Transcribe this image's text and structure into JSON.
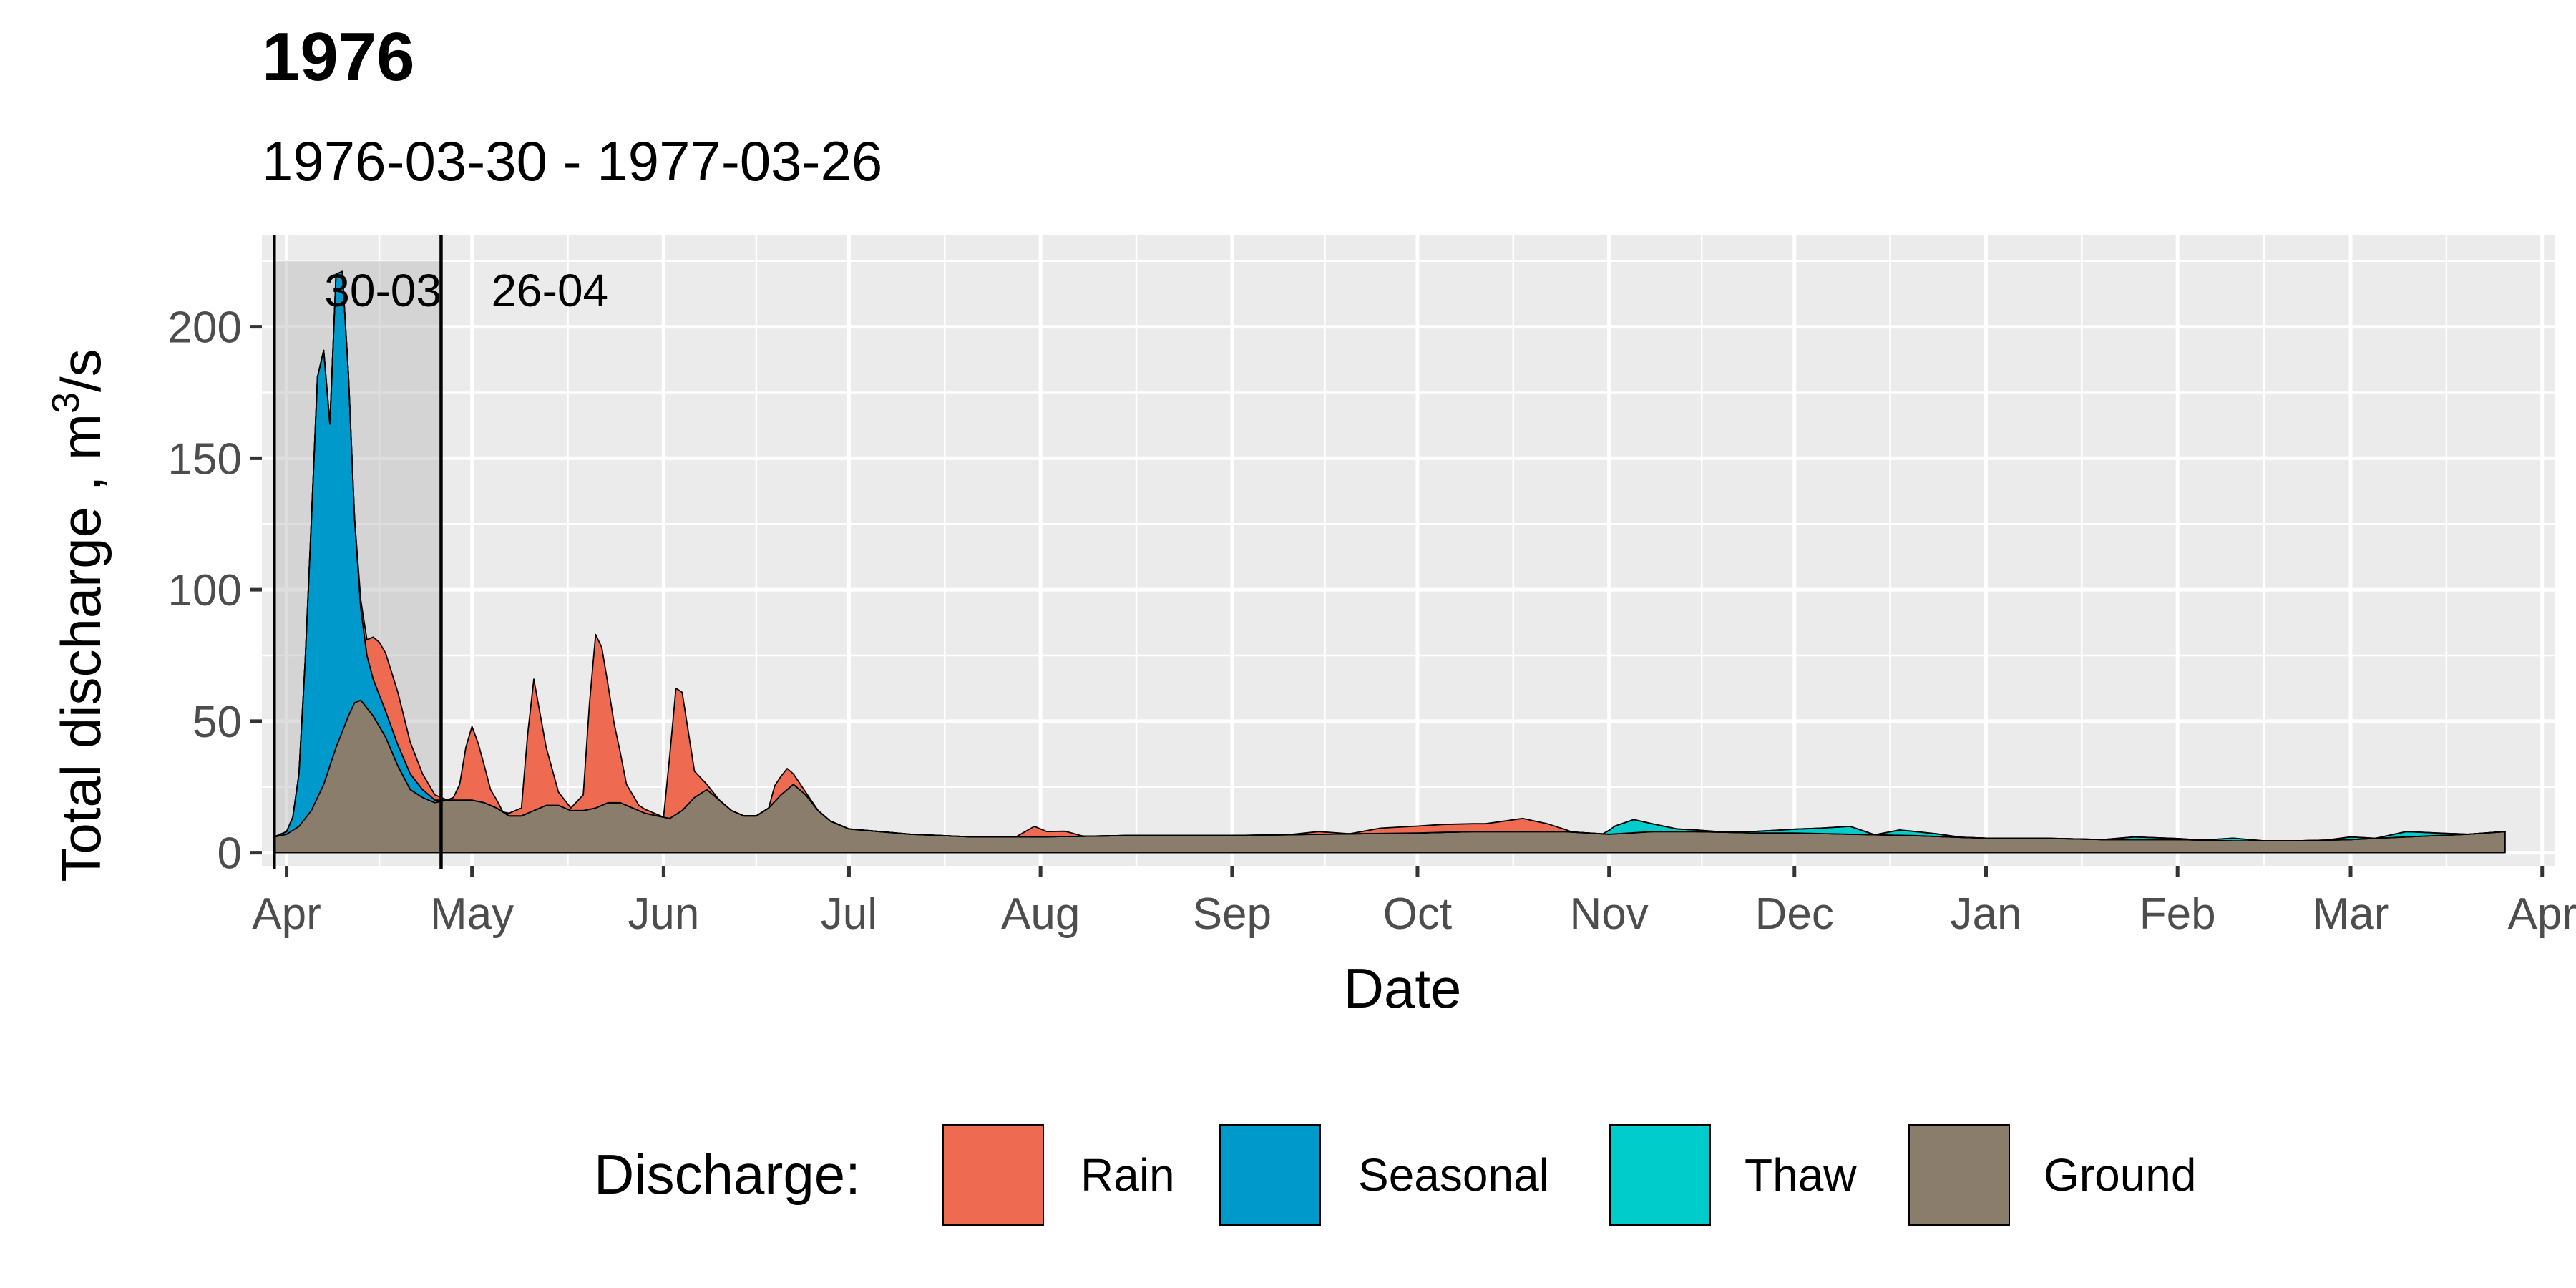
{
  "chart_data": {
    "type": "area",
    "stacked": true,
    "title": "1976",
    "subtitle": "1976-03-30 - 1977-03-26",
    "xlabel": "Date",
    "ylabel_main": "Total discharge ,  m",
    "ylabel_sup": "3",
    "ylabel_tail": "/s",
    "xlim": [
      "1976-03-28",
      "1977-04-03"
    ],
    "ylim": [
      -5,
      235
    ],
    "y_ticks": [
      0,
      50,
      100,
      150,
      200
    ],
    "x_ticks": [
      {
        "date": "1976-04-01",
        "label": "Apr"
      },
      {
        "date": "1976-05-01",
        "label": "May"
      },
      {
        "date": "1976-06-01",
        "label": "Jun"
      },
      {
        "date": "1976-07-01",
        "label": "Jul"
      },
      {
        "date": "1976-08-01",
        "label": "Aug"
      },
      {
        "date": "1976-09-01",
        "label": "Sep"
      },
      {
        "date": "1976-10-01",
        "label": "Oct"
      },
      {
        "date": "1976-11-01",
        "label": "Nov"
      },
      {
        "date": "1976-12-01",
        "label": "Dec"
      },
      {
        "date": "1977-01-01",
        "label": "Jan"
      },
      {
        "date": "1977-02-01",
        "label": "Feb"
      },
      {
        "date": "1977-03-01",
        "label": "Mar"
      },
      {
        "date": "1977-04-01",
        "label": "Apr"
      }
    ],
    "grid": true,
    "legend": {
      "title": "Discharge:",
      "position": "bottom"
    },
    "highlight": {
      "start": "1976-03-30",
      "end": "1976-04-26",
      "ymax": 225,
      "start_label": "30-03",
      "end_label": "26-04"
    },
    "series": [
      {
        "name": "Ground",
        "color": "#8B7D6B",
        "points": [
          [
            "1976-03-30",
            6
          ],
          [
            "1976-04-01",
            7
          ],
          [
            "1976-04-03",
            10
          ],
          [
            "1976-04-05",
            16
          ],
          [
            "1976-04-07",
            26
          ],
          [
            "1976-04-09",
            40
          ],
          [
            "1976-04-11",
            52
          ],
          [
            "1976-04-12",
            57
          ],
          [
            "1976-04-13",
            58
          ],
          [
            "1976-04-15",
            52
          ],
          [
            "1976-04-17",
            44
          ],
          [
            "1976-04-19",
            33
          ],
          [
            "1976-04-21",
            24
          ],
          [
            "1976-04-23",
            21
          ],
          [
            "1976-04-25",
            19
          ],
          [
            "1976-04-27",
            20
          ],
          [
            "1976-04-29",
            20
          ],
          [
            "1976-05-01",
            20
          ],
          [
            "1976-05-03",
            19
          ],
          [
            "1976-05-05",
            17
          ],
          [
            "1976-05-07",
            14
          ],
          [
            "1976-05-09",
            14
          ],
          [
            "1976-05-11",
            16
          ],
          [
            "1976-05-13",
            18
          ],
          [
            "1976-05-15",
            18
          ],
          [
            "1976-05-17",
            16
          ],
          [
            "1976-05-19",
            16
          ],
          [
            "1976-05-21",
            17
          ],
          [
            "1976-05-23",
            19
          ],
          [
            "1976-05-25",
            19
          ],
          [
            "1976-05-27",
            17
          ],
          [
            "1976-05-29",
            15
          ],
          [
            "1976-05-31",
            14
          ],
          [
            "1976-06-02",
            13
          ],
          [
            "1976-06-04",
            16
          ],
          [
            "1976-06-06",
            21
          ],
          [
            "1976-06-08",
            24
          ],
          [
            "1976-06-10",
            20
          ],
          [
            "1976-06-12",
            16
          ],
          [
            "1976-06-14",
            14
          ],
          [
            "1976-06-16",
            14
          ],
          [
            "1976-06-18",
            17
          ],
          [
            "1976-06-20",
            22
          ],
          [
            "1976-06-22",
            26
          ],
          [
            "1976-06-24",
            22
          ],
          [
            "1976-06-26",
            16
          ],
          [
            "1976-06-28",
            12
          ],
          [
            "1976-07-01",
            9
          ],
          [
            "1976-07-06",
            8
          ],
          [
            "1976-07-11",
            7
          ],
          [
            "1976-07-21",
            6
          ],
          [
            "1976-08-01",
            6
          ],
          [
            "1976-08-15",
            6.5
          ],
          [
            "1976-09-01",
            6.5
          ],
          [
            "1976-09-15",
            7
          ],
          [
            "1976-10-01",
            7.5
          ],
          [
            "1976-10-10",
            8
          ],
          [
            "1976-10-20",
            8
          ],
          [
            "1976-10-25",
            8
          ],
          [
            "1976-11-01",
            7
          ],
          [
            "1976-11-08",
            8
          ],
          [
            "1976-11-15",
            8
          ],
          [
            "1976-11-25",
            7.5
          ],
          [
            "1976-12-01",
            7.5
          ],
          [
            "1976-12-10",
            7
          ],
          [
            "1976-12-20",
            6.5
          ],
          [
            "1977-01-01",
            5.5
          ],
          [
            "1977-01-10",
            5.5
          ],
          [
            "1977-01-20",
            5
          ],
          [
            "1977-02-01",
            5
          ],
          [
            "1977-02-10",
            4.5
          ],
          [
            "1977-02-20",
            4.5
          ],
          [
            "1977-03-01",
            5
          ],
          [
            "1977-03-10",
            6
          ],
          [
            "1977-03-20",
            7
          ],
          [
            "1977-03-26",
            8
          ]
        ]
      },
      {
        "name": "Seasonal",
        "color": "#0099CC",
        "points": [
          [
            "1976-03-30",
            0
          ],
          [
            "1976-04-01",
            1
          ],
          [
            "1976-04-02",
            5
          ],
          [
            "1976-04-03",
            20
          ],
          [
            "1976-04-04",
            60
          ],
          [
            "1976-04-05",
            110
          ],
          [
            "1976-04-06",
            160
          ],
          [
            "1976-04-07",
            165
          ],
          [
            "1976-04-08",
            130
          ],
          [
            "1976-04-09",
            180
          ],
          [
            "1976-04-10",
            175
          ],
          [
            "1976-04-11",
            130
          ],
          [
            "1976-04-12",
            70
          ],
          [
            "1976-04-13",
            35
          ],
          [
            "1976-04-14",
            20
          ],
          [
            "1976-04-15",
            14
          ],
          [
            "1976-04-17",
            10
          ],
          [
            "1976-04-19",
            8
          ],
          [
            "1976-04-21",
            6
          ],
          [
            "1976-04-23",
            3
          ],
          [
            "1976-04-25",
            1
          ],
          [
            "1976-04-27",
            0
          ],
          [
            "1977-03-26",
            0
          ]
        ]
      },
      {
        "name": "Thaw",
        "color": "#00CCCC",
        "points": [
          [
            "1976-03-30",
            0
          ],
          [
            "1976-10-31",
            0
          ],
          [
            "1976-11-02",
            3
          ],
          [
            "1976-11-05",
            5
          ],
          [
            "1976-11-08",
            3
          ],
          [
            "1976-11-12",
            1
          ],
          [
            "1976-11-20",
            0
          ],
          [
            "1976-11-28",
            1
          ],
          [
            "1976-12-05",
            2
          ],
          [
            "1976-12-10",
            3
          ],
          [
            "1976-12-14",
            0
          ],
          [
            "1976-12-18",
            2
          ],
          [
            "1976-12-24",
            1
          ],
          [
            "1976-12-28",
            0
          ],
          [
            "1977-01-20",
            0
          ],
          [
            "1977-01-25",
            1
          ],
          [
            "1977-02-05",
            0
          ],
          [
            "1977-02-10",
            1
          ],
          [
            "1977-02-15",
            0
          ],
          [
            "1977-02-25",
            0
          ],
          [
            "1977-03-01",
            1
          ],
          [
            "1977-03-05",
            0
          ],
          [
            "1977-03-10",
            2
          ],
          [
            "1977-03-15",
            1
          ],
          [
            "1977-03-20",
            0
          ],
          [
            "1977-03-26",
            0
          ]
        ]
      },
      {
        "name": "Rain",
        "color": "#EE6A50",
        "points": [
          [
            "1976-03-30",
            0
          ],
          [
            "1976-04-12",
            0
          ],
          [
            "1976-04-14",
            6
          ],
          [
            "1976-04-15",
            16
          ],
          [
            "1976-04-16",
            20
          ],
          [
            "1976-04-17",
            22
          ],
          [
            "1976-04-19",
            20
          ],
          [
            "1976-04-21",
            12
          ],
          [
            "1976-04-23",
            6
          ],
          [
            "1976-04-25",
            2
          ],
          [
            "1976-04-27",
            0
          ],
          [
            "1976-04-28",
            1
          ],
          [
            "1976-04-29",
            6
          ],
          [
            "1976-04-30",
            20
          ],
          [
            "1976-05-01",
            28
          ],
          [
            "1976-05-02",
            22
          ],
          [
            "1976-05-04",
            6
          ],
          [
            "1976-05-06",
            0
          ],
          [
            "1976-05-09",
            3
          ],
          [
            "1976-05-10",
            30
          ],
          [
            "1976-05-11",
            50
          ],
          [
            "1976-05-13",
            22
          ],
          [
            "1976-05-15",
            5
          ],
          [
            "1976-05-17",
            1
          ],
          [
            "1976-05-19",
            6
          ],
          [
            "1976-05-20",
            40
          ],
          [
            "1976-05-21",
            66
          ],
          [
            "1976-05-22",
            60
          ],
          [
            "1976-05-24",
            30
          ],
          [
            "1976-05-26",
            8
          ],
          [
            "1976-05-28",
            2
          ],
          [
            "1976-06-01",
            0
          ],
          [
            "1976-06-03",
            48
          ],
          [
            "1976-06-04",
            45
          ],
          [
            "1976-06-06",
            10
          ],
          [
            "1976-06-08",
            2
          ],
          [
            "1976-06-10",
            0
          ],
          [
            "1976-06-18",
            0
          ],
          [
            "1976-06-19",
            6
          ],
          [
            "1976-06-21",
            8
          ],
          [
            "1976-06-22",
            4
          ],
          [
            "1976-06-24",
            1
          ],
          [
            "1976-06-26",
            0
          ],
          [
            "1976-07-28",
            0
          ],
          [
            "1976-07-31",
            4
          ],
          [
            "1976-08-02",
            2
          ],
          [
            "1976-08-05",
            2
          ],
          [
            "1976-08-08",
            0
          ],
          [
            "1976-09-10",
            0
          ],
          [
            "1976-09-15",
            1
          ],
          [
            "1976-09-20",
            0
          ],
          [
            "1976-09-25",
            2
          ],
          [
            "1976-10-05",
            3
          ],
          [
            "1976-10-12",
            3
          ],
          [
            "1976-10-18",
            5
          ],
          [
            "1976-10-22",
            3
          ],
          [
            "1976-10-26",
            0
          ],
          [
            "1977-03-26",
            0
          ]
        ]
      }
    ]
  }
}
